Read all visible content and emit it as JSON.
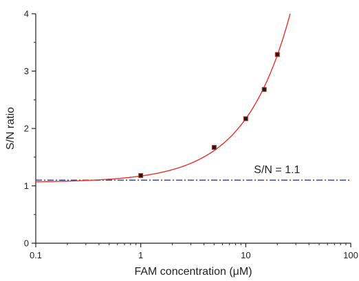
{
  "chart_data": {
    "type": "scatter",
    "xlabel": "FAM concentration (μM)",
    "ylabel": "S/N ratio",
    "xscale": "log",
    "xlim": [
      0.1,
      100
    ],
    "ylim": [
      0,
      4
    ],
    "x_ticks": [
      0.1,
      1,
      10,
      100
    ],
    "x_tick_labels": [
      "0.1",
      "1",
      "10",
      "100"
    ],
    "y_ticks": [
      0,
      1,
      2,
      3,
      4
    ],
    "y_tick_labels": [
      "0",
      "1",
      "2",
      "3",
      "4"
    ],
    "grid": false,
    "points": [
      {
        "x": 1,
        "y": 1.18
      },
      {
        "x": 5,
        "y": 1.67
      },
      {
        "x": 10,
        "y": 2.17
      },
      {
        "x": 15,
        "y": 2.68
      },
      {
        "x": 20,
        "y": 3.29
      }
    ],
    "fit_curve": {
      "form": "linear",
      "intercept": 1.06,
      "slope": 0.111,
      "color": "#e8302a"
    },
    "threshold": {
      "y": 1.1,
      "label": "S/N = 1.1",
      "color": "#2b3b97"
    },
    "marker_color": "#1a1a1a",
    "marker_edge_color": "#c0392b"
  }
}
